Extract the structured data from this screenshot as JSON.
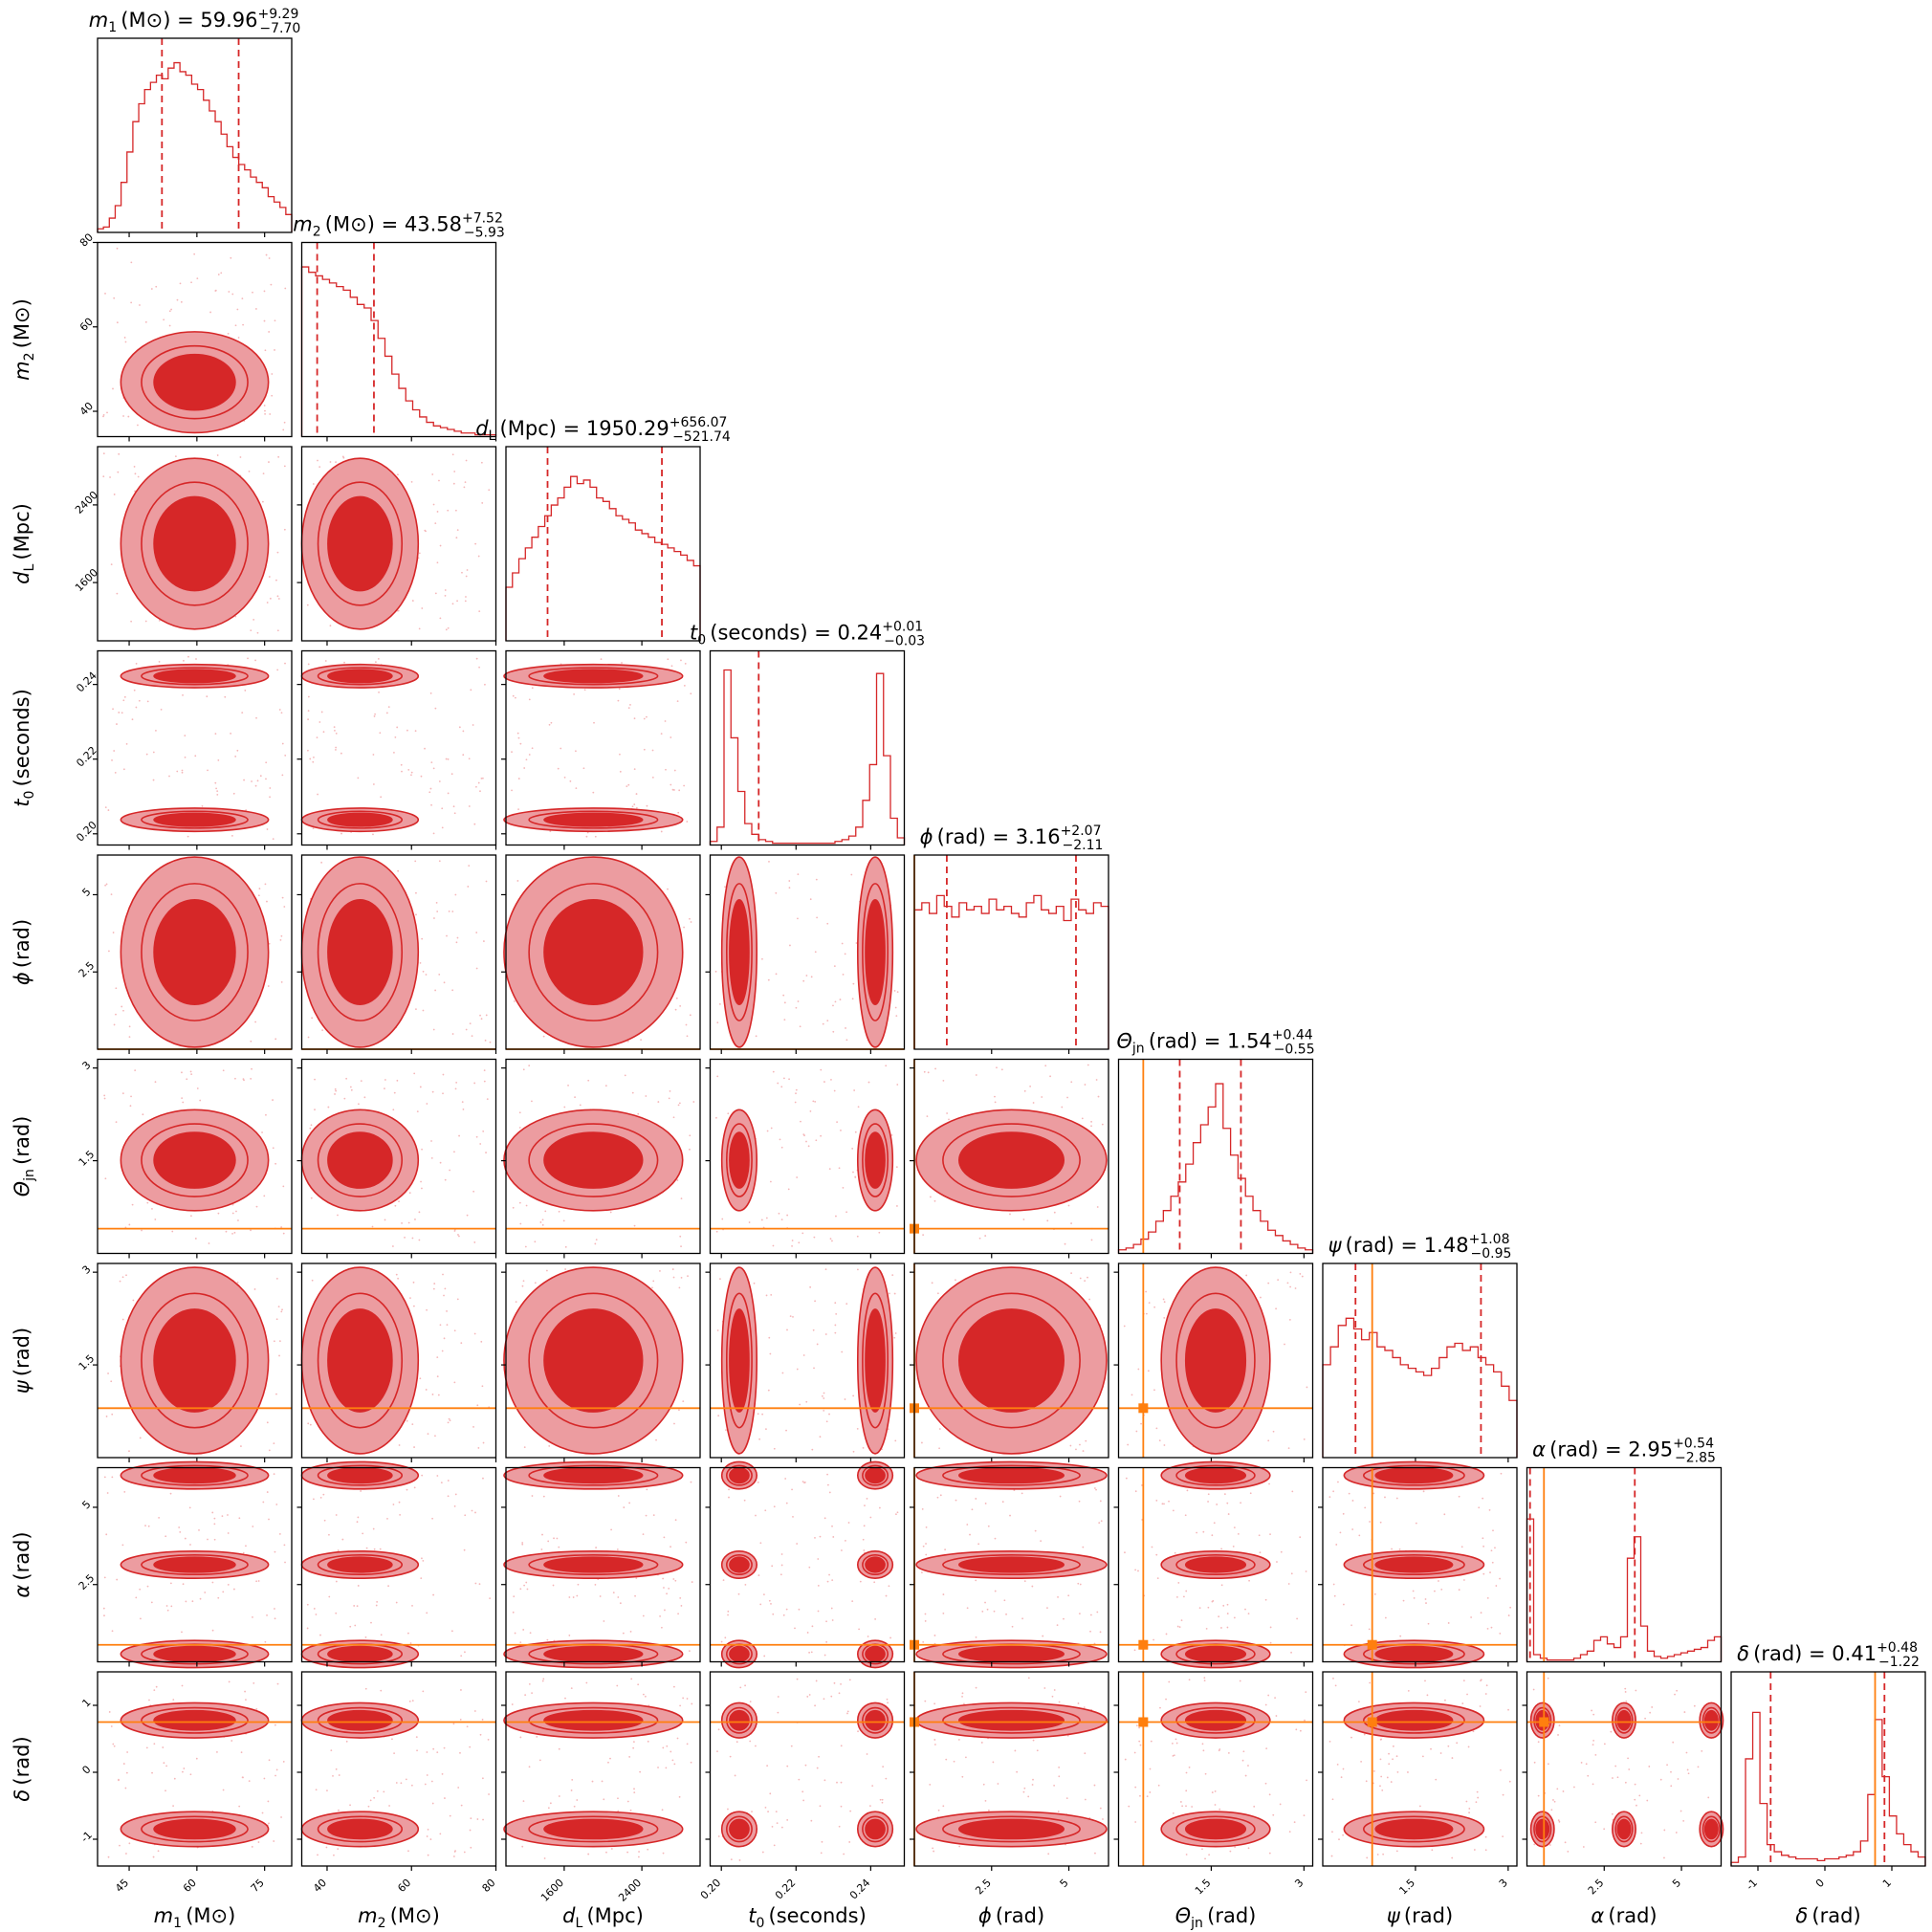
{
  "chart_data": {
    "type": "corner",
    "parameters": [
      {
        "key": "m1",
        "sym": "m",
        "sub": "1",
        "unit": "(M⊙)",
        "median": "59.96",
        "plus": "+9.29",
        "minus": "−7.70",
        "range": [
          38,
          81
        ],
        "ticks": [
          45,
          60,
          75
        ],
        "truth": null,
        "hist": [
          0.02,
          0.03,
          0.08,
          0.15,
          0.28,
          0.45,
          0.62,
          0.72,
          0.8,
          0.84,
          0.88,
          0.86,
          0.92,
          0.95,
          0.9,
          0.88,
          0.83,
          0.8,
          0.74,
          0.68,
          0.62,
          0.55,
          0.48,
          0.42,
          0.38,
          0.35,
          0.31,
          0.28,
          0.25,
          0.2,
          0.17,
          0.14,
          0.1
        ]
      },
      {
        "key": "m2",
        "sym": "m",
        "sub": "2",
        "unit": "(M⊙)",
        "median": "43.58",
        "plus": "+7.52",
        "minus": "−5.93",
        "range": [
          34,
          80
        ],
        "ticks": [
          40,
          60,
          80
        ],
        "truth": null,
        "hist": [
          0.95,
          0.92,
          0.9,
          0.88,
          0.86,
          0.84,
          0.82,
          0.78,
          0.74,
          0.72,
          0.65,
          0.55,
          0.45,
          0.35,
          0.27,
          0.2,
          0.15,
          0.11,
          0.08,
          0.06,
          0.05,
          0.04,
          0.03,
          0.02,
          0.02,
          0.01,
          0.01,
          0.01
        ]
      },
      {
        "key": "dL",
        "sym": "d",
        "sub": "L",
        "unit": "(Mpc)",
        "median": "1950.29",
        "plus": "+656.07",
        "minus": "−521.74",
        "range": [
          1000,
          3000
        ],
        "ticks": [
          1600,
          2400
        ],
        "truth": null,
        "hist": [
          0.3,
          0.38,
          0.46,
          0.52,
          0.58,
          0.64,
          0.7,
          0.76,
          0.8,
          0.86,
          0.92,
          0.88,
          0.9,
          0.86,
          0.8,
          0.78,
          0.74,
          0.7,
          0.68,
          0.66,
          0.62,
          0.6,
          0.58,
          0.55,
          0.54,
          0.52,
          0.5,
          0.48,
          0.45,
          0.42
        ]
      },
      {
        "key": "t0",
        "sym": "t",
        "sub": "0",
        "unit": "(seconds)",
        "median": "0.24",
        "plus": "+0.01",
        "minus": "−0.03",
        "range": [
          0.197,
          0.249
        ],
        "ticks": [
          0.2,
          0.22,
          0.24
        ],
        "truth": null,
        "hist": [
          0.02,
          0.1,
          0.98,
          0.6,
          0.3,
          0.12,
          0.06,
          0.03,
          0.02,
          0.01,
          0.01,
          0.01,
          0.01,
          0.01,
          0.01,
          0.01,
          0.01,
          0.01,
          0.02,
          0.03,
          0.05,
          0.1,
          0.25,
          0.45,
          0.96,
          0.5,
          0.15,
          0.04
        ]
      },
      {
        "key": "phi",
        "sym": "ϕ",
        "sub": "",
        "unit": "(rad)",
        "median": "3.16",
        "plus": "+2.07",
        "minus": "−2.11",
        "range": [
          0,
          6.283
        ],
        "ticks": [
          2.5,
          5.0
        ],
        "truth": 0.0,
        "hist": [
          0.78,
          0.82,
          0.76,
          0.86,
          0.8,
          0.74,
          0.82,
          0.78,
          0.8,
          0.76,
          0.84,
          0.78,
          0.8,
          0.76,
          0.74,
          0.82,
          0.86,
          0.78,
          0.76,
          0.8,
          0.72,
          0.84,
          0.78,
          0.76,
          0.82,
          0.8
        ]
      },
      {
        "key": "theta",
        "sym": "Θ",
        "sub": "jn",
        "unit": "(rad)",
        "median": "1.54",
        "plus": "+0.44",
        "minus": "−0.55",
        "range": [
          0,
          3.14159
        ],
        "ticks": [
          1.5,
          3.0
        ],
        "truth": 0.4,
        "hist": [
          0.02,
          0.03,
          0.05,
          0.08,
          0.12,
          0.18,
          0.24,
          0.32,
          0.4,
          0.5,
          0.62,
          0.72,
          0.82,
          0.95,
          0.7,
          0.55,
          0.42,
          0.32,
          0.24,
          0.18,
          0.13,
          0.1,
          0.07,
          0.05,
          0.03,
          0.02
        ]
      },
      {
        "key": "psi",
        "sym": "ψ",
        "sub": "",
        "unit": "(rad)",
        "median": "1.48",
        "plus": "+1.08",
        "minus": "−0.95",
        "range": [
          0,
          3.14159
        ],
        "ticks": [
          1.5,
          3.0
        ],
        "truth": 0.8,
        "hist": [
          0.52,
          0.62,
          0.74,
          0.78,
          0.72,
          0.66,
          0.7,
          0.62,
          0.6,
          0.56,
          0.52,
          0.5,
          0.48,
          0.46,
          0.5,
          0.56,
          0.62,
          0.64,
          0.6,
          0.62,
          0.56,
          0.52,
          0.48,
          0.4,
          0.32
        ]
      },
      {
        "key": "alpha",
        "sym": "α",
        "sub": "",
        "unit": "(rad)",
        "median": "2.95",
        "plus": "+0.54",
        "minus": "−2.85",
        "range": [
          0,
          6.283
        ],
        "ticks": [
          2.5,
          5.0
        ],
        "truth": 0.55,
        "hist": [
          0.8,
          0.04,
          0.02,
          0.01,
          0.01,
          0.01,
          0.01,
          0.02,
          0.04,
          0.06,
          0.12,
          0.14,
          0.1,
          0.08,
          0.14,
          0.58,
          0.7,
          0.2,
          0.06,
          0.03,
          0.02,
          0.03,
          0.04,
          0.05,
          0.06,
          0.07,
          0.08,
          0.12,
          0.14
        ]
      },
      {
        "key": "delta",
        "sym": "δ",
        "sub": "",
        "unit": "(rad)",
        "median": "0.41",
        "plus": "+0.48",
        "minus": "−1.22",
        "range": [
          -1.4,
          1.5
        ],
        "ticks": [
          -1,
          0,
          1
        ],
        "truth": 0.75,
        "hist": [
          0.02,
          0.05,
          0.6,
          0.86,
          0.35,
          0.12,
          0.08,
          0.06,
          0.05,
          0.04,
          0.04,
          0.04,
          0.03,
          0.04,
          0.04,
          0.05,
          0.06,
          0.08,
          0.14,
          0.4,
          0.82,
          0.5,
          0.28,
          0.18,
          0.12,
          0.08,
          0.05
        ]
      }
    ]
  }
}
